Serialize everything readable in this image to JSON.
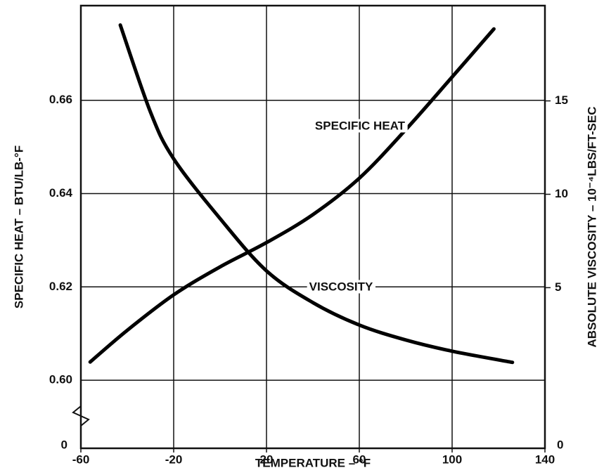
{
  "chart_data": {
    "type": "line",
    "xlabel": "TEMPERATURE – °F",
    "ylabel": "SPECIFIC HEAT – BTU/LB-°F",
    "y2label": "ABSOLUTE VISCOSITY – 10⁻⁴LBS/FT-SEC",
    "y_bottom_label": "0",
    "y2_bottom_label": "0",
    "xlim": [
      -60,
      140
    ],
    "xticks": [
      -60,
      -20,
      20,
      60,
      100,
      140
    ],
    "ylim": [
      0.5854,
      0.6803
    ],
    "yticks": [
      {
        "value": 0.6,
        "label": "0.60"
      },
      0.62,
      0.64,
      {
        "value": 0.66,
        "label": "0.66"
      }
    ],
    "y2lim": [
      -3.6,
      20.1
    ],
    "y2ticks": [
      5,
      10,
      15
    ],
    "grid": true,
    "series": [
      {
        "name": "SPECIFIC HEAT",
        "color": "#000000",
        "x": [
          -56,
          -40,
          -20,
          0,
          20,
          40,
          60,
          80,
          100,
          118
        ],
        "values": [
          0.6039,
          0.6107,
          0.6183,
          0.6243,
          0.6295,
          0.6355,
          0.6433,
          0.6537,
          0.665,
          0.6753
        ]
      },
      {
        "name": "VISCOSITY",
        "color": "#000000",
        "axis": "y2",
        "x": [
          -43,
          -30,
          -20,
          0,
          20,
          40,
          60,
          80,
          100,
          126
        ],
        "values": [
          19.06,
          14.4,
          11.9,
          8.7,
          5.9,
          4.2,
          3.0,
          2.2,
          1.6,
          1.0
        ]
      }
    ]
  }
}
